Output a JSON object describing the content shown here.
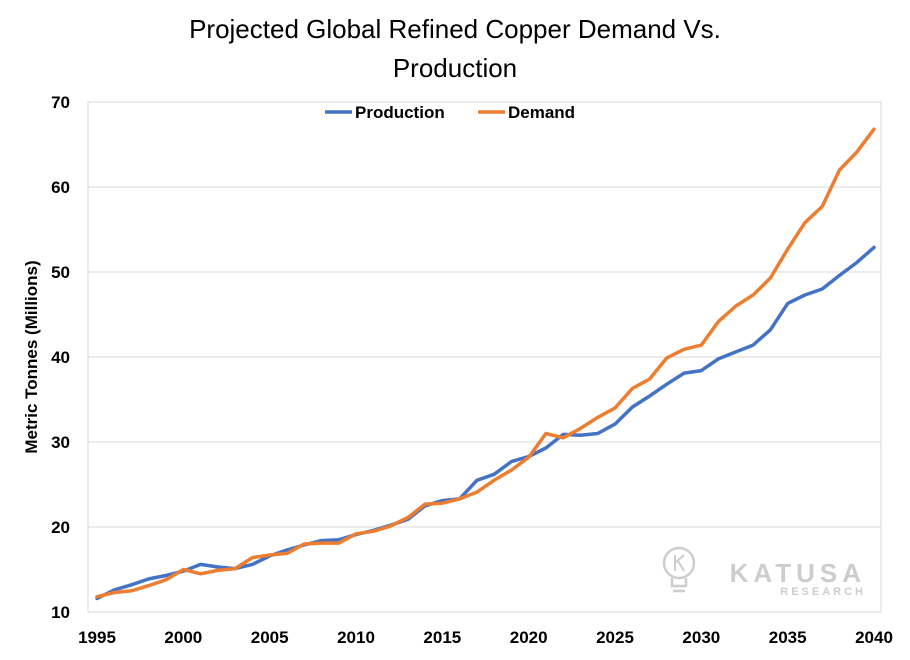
{
  "chart_data": {
    "type": "line",
    "title": "Projected Global Refined Copper Demand Vs. Production",
    "title_lines": [
      "Projected Global Refined Copper Demand Vs.",
      "Production"
    ],
    "xlabel": "",
    "ylabel": "Metric Tonnes (Millions)",
    "xlim": [
      1995,
      2040
    ],
    "ylim": [
      10,
      70
    ],
    "xticks": [
      "1995",
      "2000",
      "2005",
      "2010",
      "2015",
      "2020",
      "2025",
      "2030",
      "2035",
      "2040"
    ],
    "yticks": [
      "10",
      "20",
      "30",
      "40",
      "50",
      "60",
      "70"
    ],
    "grid": "horizontal",
    "legend": "top-center",
    "x": [
      1995,
      1996,
      1997,
      1998,
      1999,
      2000,
      2001,
      2002,
      2003,
      2004,
      2005,
      2006,
      2007,
      2008,
      2009,
      2010,
      2011,
      2012,
      2013,
      2014,
      2015,
      2016,
      2017,
      2018,
      2019,
      2020,
      2021,
      2022,
      2023,
      2024,
      2025,
      2026,
      2027,
      2028,
      2029,
      2030,
      2031,
      2032,
      2033,
      2034,
      2035,
      2036,
      2037,
      2038,
      2039,
      2040
    ],
    "series": [
      {
        "name": "Production",
        "color": "#4472c4",
        "values": [
          11.6,
          12.6,
          13.2,
          13.9,
          14.3,
          14.8,
          15.6,
          15.3,
          15.1,
          15.6,
          16.6,
          17.3,
          17.9,
          18.4,
          18.5,
          19.1,
          19.6,
          20.2,
          20.9,
          22.5,
          23.1,
          23.3,
          25.5,
          26.2,
          27.7,
          28.3,
          29.3,
          30.9,
          30.8,
          31.0,
          32.1,
          34.1,
          35.4,
          36.8,
          38.1,
          38.4,
          39.8,
          40.6,
          41.4,
          43.2,
          46.3,
          47.3,
          48.0,
          49.6,
          51.1,
          52.9
        ]
      },
      {
        "name": "Demand",
        "color": "#ed7d31",
        "values": [
          11.8,
          12.3,
          12.5,
          13.1,
          13.8,
          15.0,
          14.5,
          14.9,
          15.1,
          16.4,
          16.7,
          16.9,
          18.0,
          18.1,
          18.1,
          19.2,
          19.5,
          20.1,
          21.1,
          22.7,
          22.8,
          23.3,
          24.1,
          25.5,
          26.7,
          28.2,
          31.0,
          30.5,
          31.6,
          32.9,
          34.0,
          36.3,
          37.4,
          39.9,
          40.9,
          41.4,
          44.2,
          46.0,
          47.3,
          49.3,
          52.7,
          55.8,
          57.7,
          62.0,
          64.1,
          66.8
        ]
      }
    ]
  },
  "watermark": {
    "brand": "KATUSA",
    "sub": "RESEARCH",
    "icon": "lightbulb-icon"
  }
}
